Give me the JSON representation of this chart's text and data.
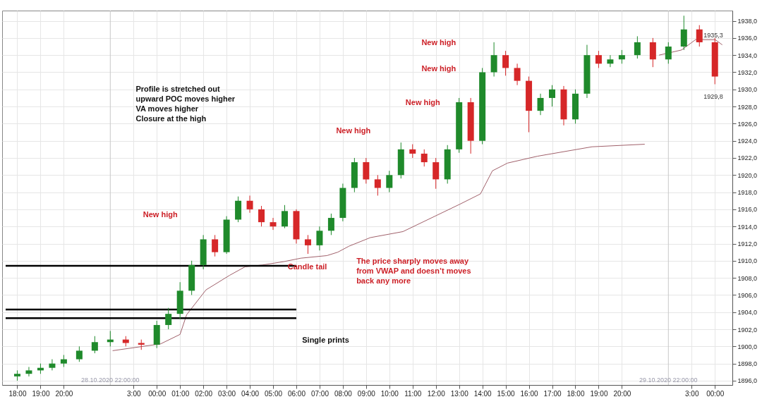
{
  "chart_data": {
    "type": "candlestick",
    "x": [
      "2020-10-28T18:00",
      "2020-10-28T18:30",
      "2020-10-28T19:00",
      "2020-10-28T19:30",
      "2020-10-28T20:00",
      "2020-10-28T20:40",
      "2020-10-28T21:20",
      "2020-10-28T22:00",
      "2020-10-28T22:40",
      "2020-10-28T23:20",
      "2020-10-29T00:00",
      "2020-10-29T00:30",
      "2020-10-29T01:00",
      "2020-10-29T01:30",
      "2020-10-29T02:00",
      "2020-10-29T02:30",
      "2020-10-29T03:00",
      "2020-10-29T03:30",
      "2020-10-29T04:00",
      "2020-10-29T04:30",
      "2020-10-29T05:00",
      "2020-10-29T05:30",
      "2020-10-29T06:00",
      "2020-10-29T06:30",
      "2020-10-29T07:00",
      "2020-10-29T07:30",
      "2020-10-29T08:00",
      "2020-10-29T08:30",
      "2020-10-29T09:00",
      "2020-10-29T09:30",
      "2020-10-29T10:00",
      "2020-10-29T10:30",
      "2020-10-29T11:00",
      "2020-10-29T11:30",
      "2020-10-29T12:00",
      "2020-10-29T12:30",
      "2020-10-29T13:00",
      "2020-10-29T13:30",
      "2020-10-29T14:00",
      "2020-10-29T14:30",
      "2020-10-29T15:00",
      "2020-10-29T15:30",
      "2020-10-29T16:00",
      "2020-10-29T16:30",
      "2020-10-29T17:00",
      "2020-10-29T17:30",
      "2020-10-29T18:00",
      "2020-10-29T18:30",
      "2020-10-29T19:00",
      "2020-10-29T19:30",
      "2020-10-29T20:00",
      "2020-10-29T20:40",
      "2020-10-29T21:20",
      "2020-10-29T22:00",
      "2020-10-29T22:40",
      "2020-10-29T23:20",
      "2020-10-30T00:00"
    ],
    "ohlc": [
      [
        1896.5,
        1897.2,
        1896,
        1896.8
      ],
      [
        1896.8,
        1897.6,
        1896.5,
        1897.2
      ],
      [
        1897.2,
        1898,
        1896.8,
        1897.5
      ],
      [
        1897.5,
        1898.5,
        1897.2,
        1898
      ],
      [
        1898,
        1899,
        1897.6,
        1898.5
      ],
      [
        1898.5,
        1900,
        1898.2,
        1899.5
      ],
      [
        1899.5,
        1901.2,
        1899.2,
        1900.5
      ],
      [
        1900.5,
        1901.8,
        1900,
        1900.8
      ],
      [
        1900.8,
        1901.2,
        1900,
        1900.4
      ],
      [
        1900.4,
        1900.8,
        1899.6,
        1900.2
      ],
      [
        1900.2,
        1903,
        1899.8,
        1902.5
      ],
      [
        1902.5,
        1904.5,
        1902,
        1903.8
      ],
      [
        1903.8,
        1907.5,
        1903.2,
        1906.5
      ],
      [
        1906.5,
        1910,
        1906,
        1909.5
      ],
      [
        1909.5,
        1913,
        1909,
        1912.5
      ],
      [
        1912.5,
        1913,
        1910.5,
        1911
      ],
      [
        1911,
        1915.2,
        1910.8,
        1914.8
      ],
      [
        1914.8,
        1917.5,
        1914.5,
        1917
      ],
      [
        1917,
        1917.6,
        1915.6,
        1916
      ],
      [
        1916,
        1916.4,
        1914,
        1914.5
      ],
      [
        1914.5,
        1915,
        1913.6,
        1914
      ],
      [
        1914,
        1916.5,
        1913.8,
        1915.8
      ],
      [
        1915.8,
        1916,
        1912,
        1912.5
      ],
      [
        1912.5,
        1913,
        1910.8,
        1911.8
      ],
      [
        1911.8,
        1914,
        1911.2,
        1913.5
      ],
      [
        1913.5,
        1915.5,
        1913,
        1915
      ],
      [
        1915,
        1919,
        1914.6,
        1918.5
      ],
      [
        1918.5,
        1922,
        1918,
        1921.5
      ],
      [
        1921.5,
        1922,
        1919,
        1919.5
      ],
      [
        1919.5,
        1920,
        1917.6,
        1918.5
      ],
      [
        1918.5,
        1920.5,
        1918,
        1920
      ],
      [
        1920,
        1923.8,
        1919.6,
        1923
      ],
      [
        1923,
        1923.6,
        1922,
        1922.5
      ],
      [
        1922.5,
        1923,
        1921,
        1921.5
      ],
      [
        1921.5,
        1922,
        1918.4,
        1919.5
      ],
      [
        1919.5,
        1923.5,
        1919,
        1923
      ],
      [
        1923,
        1929,
        1922.6,
        1928.5
      ],
      [
        1928.5,
        1929,
        1922.5,
        1924
      ],
      [
        1924,
        1932.5,
        1923.6,
        1932
      ],
      [
        1932,
        1935.5,
        1931.5,
        1934
      ],
      [
        1934,
        1934.5,
        1931.6,
        1932.5
      ],
      [
        1932.5,
        1933,
        1930.5,
        1931
      ],
      [
        1931,
        1931.5,
        1925,
        1927.5
      ],
      [
        1927.5,
        1929.5,
        1927,
        1929
      ],
      [
        1929,
        1930.5,
        1928,
        1930
      ],
      [
        1930,
        1930.4,
        1925.8,
        1926.5
      ],
      [
        1926.5,
        1930,
        1926,
        1929.5
      ],
      [
        1929.5,
        1935.2,
        1929,
        1934
      ],
      [
        1934,
        1934.5,
        1932.5,
        1933
      ],
      [
        1933,
        1934,
        1932.6,
        1933.5
      ],
      [
        1933.5,
        1934.6,
        1933,
        1934
      ],
      [
        1934,
        1936.2,
        1933.6,
        1935.5
      ],
      [
        1935.5,
        1936,
        1932.6,
        1933.5
      ],
      [
        1933.5,
        1935.5,
        1933,
        1935
      ],
      [
        1935,
        1938.6,
        1934.6,
        1937
      ],
      [
        1937,
        1937.5,
        1935,
        1935.5
      ],
      [
        1935.5,
        1936,
        1930.6,
        1931.5
      ]
    ],
    "series": [
      {
        "type": "line",
        "color": "#a0606a",
        "x": [
          "2020-10-28T22:06",
          "2020-10-29T00:10",
          "2020-10-29T01:00",
          "2020-10-29T01:17",
          "2020-10-29T02:07",
          "2020-10-29T03:08",
          "2020-10-29T03:48",
          "2020-10-29T04:32",
          "2020-10-29T05:28",
          "2020-10-29T06:12",
          "2020-10-29T07:19",
          "2020-10-29T07:47",
          "2020-10-29T08:16",
          "2020-10-29T09:11",
          "2020-10-29T10:35",
          "2020-10-29T13:02",
          "2020-10-29T13:55",
          "2020-10-29T14:26",
          "2020-10-29T15:05",
          "2020-10-29T16:22",
          "2020-10-29T17:39",
          "2020-10-29T18:43",
          "2020-10-29T20:59"
        ],
        "values": [
          1899.5,
          1900.3,
          1901.4,
          1903.7,
          1906.6,
          1908.3,
          1909.3,
          1909.5,
          1909.9,
          1910.3,
          1910.6,
          1911.0,
          1911.7,
          1912.7,
          1913.4,
          1916.6,
          1917.8,
          1920.5,
          1921.4,
          1922.2,
          1922.8,
          1923.3,
          1923.6
        ]
      },
      {
        "type": "line",
        "color": "#a0606a",
        "x": [
          "2020-10-29T21:36",
          "2020-10-29T22:34",
          "2020-10-29T23:10",
          "2020-10-30T00:01",
          "2020-10-30T00:19"
        ],
        "values": [
          1934.0,
          1934.6,
          1935.8,
          1935.8,
          1935.2
        ]
      },
      {
        "type": "line",
        "color": "#000000",
        "x": [
          "2020-10-28T17:30",
          "2020-10-29T06:00"
        ],
        "values": [
          1909.4,
          1909.4
        ]
      },
      {
        "type": "line",
        "color": "#000000",
        "x": [
          "2020-10-28T17:30",
          "2020-10-29T06:00"
        ],
        "values": [
          1904.3,
          1904.3
        ]
      },
      {
        "type": "line",
        "color": "#000000",
        "x": [
          "2020-10-28T17:30",
          "2020-10-29T06:00"
        ],
        "values": [
          1903.3,
          1903.3
        ]
      }
    ],
    "xlim": [
      "2020-10-28T17:30",
      "2020-10-30T00:36"
    ],
    "xticks": [
      {
        "value": "2020-10-28T18:00",
        "label": "18:00"
      },
      {
        "value": "2020-10-28T19:00",
        "label": "19:00"
      },
      {
        "value": "2020-10-28T20:00",
        "label": "20:00"
      },
      {
        "value": "2020-10-28T23:00",
        "label": "3:00"
      },
      {
        "value": "2020-10-29T00:00",
        "label": "00:00"
      },
      {
        "value": "2020-10-29T01:00",
        "label": "01:00"
      },
      {
        "value": "2020-10-29T02:00",
        "label": "02:00"
      },
      {
        "value": "2020-10-29T03:00",
        "label": "03:00"
      },
      {
        "value": "2020-10-29T04:00",
        "label": "04:00"
      },
      {
        "value": "2020-10-29T05:00",
        "label": "05:00"
      },
      {
        "value": "2020-10-29T06:00",
        "label": "06:00"
      },
      {
        "value": "2020-10-29T07:00",
        "label": "07:00"
      },
      {
        "value": "2020-10-29T08:00",
        "label": "08:00"
      },
      {
        "value": "2020-10-29T09:00",
        "label": "09:00"
      },
      {
        "value": "2020-10-29T10:00",
        "label": "10:00"
      },
      {
        "value": "2020-10-29T11:00",
        "label": "11:00"
      },
      {
        "value": "2020-10-29T12:00",
        "label": "12:00"
      },
      {
        "value": "2020-10-29T13:00",
        "label": "13:00"
      },
      {
        "value": "2020-10-29T14:00",
        "label": "14:00"
      },
      {
        "value": "2020-10-29T15:00",
        "label": "15:00"
      },
      {
        "value": "2020-10-29T16:00",
        "label": "16:00"
      },
      {
        "value": "2020-10-29T17:00",
        "label": "17:00"
      },
      {
        "value": "2020-10-29T18:00",
        "label": "18:00"
      },
      {
        "value": "2020-10-29T19:00",
        "label": "19:00"
      },
      {
        "value": "2020-10-29T20:00",
        "label": "20:00"
      },
      {
        "value": "2020-10-29T23:00",
        "label": "3:00"
      },
      {
        "value": "2020-10-30T00:00",
        "label": "00:00"
      }
    ],
    "ylim": [
      1895.5,
      1939.2
    ],
    "yticks": [
      {
        "value": 1896,
        "label": "1896,0"
      },
      {
        "value": 1898,
        "label": "1898,0"
      },
      {
        "value": 1900,
        "label": "1900,0"
      },
      {
        "value": 1902,
        "label": "1902,0"
      },
      {
        "value": 1904,
        "label": "1904,0"
      },
      {
        "value": 1906,
        "label": "1906,0"
      },
      {
        "value": 1908,
        "label": "1908,0"
      },
      {
        "value": 1910,
        "label": "1910,0"
      },
      {
        "value": 1912,
        "label": "1912,0"
      },
      {
        "value": 1914,
        "label": "1914,0"
      },
      {
        "value": 1916,
        "label": "1916,0"
      },
      {
        "value": 1918,
        "label": "1918,0"
      },
      {
        "value": 1920,
        "label": "1920,0"
      },
      {
        "value": 1922,
        "label": "1922,0"
      },
      {
        "value": 1924,
        "label": "1924,0"
      },
      {
        "value": 1926,
        "label": "1926,0"
      },
      {
        "value": 1928,
        "label": "1928,0"
      },
      {
        "value": 1930,
        "label": "1930,0"
      },
      {
        "value": 1932,
        "label": "1932,0"
      },
      {
        "value": 1934,
        "label": "1934,0"
      },
      {
        "value": 1936,
        "label": "1936,0"
      },
      {
        "value": 1938,
        "label": "1938,0"
      }
    ],
    "ref_lines": [
      {
        "axis": "x",
        "value": "2020-10-28T22:00",
        "label": "28.10.2020 22:00:00",
        "color": "#c8c8c8"
      },
      {
        "axis": "x",
        "value": "2020-10-29T22:00",
        "label": "29.10.2020 22:00:00",
        "color": "#c8c8c8"
      }
    ],
    "grid": true,
    "annotations": [
      "New high",
      "New high",
      "New high",
      "New high",
      "New high",
      "Candle tail",
      "The price sharply moves away\nfrom VWAP and doesn’t moves\nback any more",
      "1935,3",
      "1929,8",
      "Profile is stretched out\nupward POC moves higher\nVA moves higher\nClosure at the high",
      "Single prints"
    ]
  }
}
